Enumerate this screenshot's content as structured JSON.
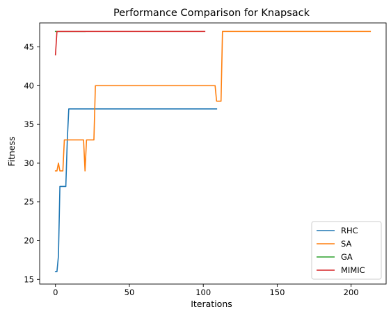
{
  "chart_data": {
    "type": "line",
    "title": "Performance Comparison for Knapsack",
    "xlabel": "Iterations",
    "ylabel": "Fitness",
    "xlim": [
      -10.7,
      223.7
    ],
    "ylim": [
      14.4,
      48.1
    ],
    "xticks": [
      0,
      50,
      100,
      150,
      200
    ],
    "yticks": [
      15,
      20,
      25,
      30,
      35,
      40,
      45
    ],
    "grid": false,
    "legend_position": "bottom-right",
    "series": [
      {
        "name": "RHC",
        "color": "#1f77b4",
        "points": [
          [
            0,
            16
          ],
          [
            1,
            16
          ],
          [
            2,
            18
          ],
          [
            3,
            27
          ],
          [
            4,
            27
          ],
          [
            5,
            27
          ],
          [
            6,
            27
          ],
          [
            7,
            27
          ],
          [
            8,
            33
          ],
          [
            9,
            37
          ],
          [
            20,
            37
          ],
          [
            40,
            37
          ],
          [
            60,
            37
          ],
          [
            80,
            37
          ],
          [
            100,
            37
          ],
          [
            109,
            37
          ]
        ]
      },
      {
        "name": "SA",
        "color": "#ff7f0e",
        "points": [
          [
            0,
            29
          ],
          [
            1,
            29
          ],
          [
            2,
            30
          ],
          [
            3,
            29
          ],
          [
            4,
            29
          ],
          [
            5,
            29
          ],
          [
            6,
            33
          ],
          [
            10,
            33
          ],
          [
            18,
            33
          ],
          [
            19,
            33
          ],
          [
            20,
            29
          ],
          [
            21,
            33
          ],
          [
            25,
            33
          ],
          [
            26,
            33
          ],
          [
            27,
            40
          ],
          [
            50,
            40
          ],
          [
            80,
            40
          ],
          [
            100,
            40
          ],
          [
            108,
            40
          ],
          [
            109,
            38
          ],
          [
            112,
            38
          ],
          [
            113,
            47
          ],
          [
            150,
            47
          ],
          [
            200,
            47
          ],
          [
            213,
            47
          ]
        ]
      },
      {
        "name": "GA",
        "color": "#2ca02c",
        "points": [
          [
            0,
            47
          ],
          [
            1,
            47
          ],
          [
            2,
            47
          ],
          [
            3,
            47
          ],
          [
            4,
            47
          ],
          [
            5,
            47
          ],
          [
            6,
            47
          ],
          [
            7,
            47
          ],
          [
            8,
            47
          ],
          [
            9,
            47
          ],
          [
            10,
            47
          ],
          [
            11,
            47
          ],
          [
            12,
            47
          ],
          [
            13,
            47
          ],
          [
            14,
            47
          ],
          [
            15,
            47
          ],
          [
            16,
            47
          ],
          [
            17,
            47
          ],
          [
            18,
            47
          ],
          [
            19,
            47
          ],
          [
            20,
            47
          ]
        ]
      },
      {
        "name": "MIMIC",
        "color": "#d62728",
        "points": [
          [
            0,
            44
          ],
          [
            1,
            47
          ],
          [
            20,
            47
          ],
          [
            40,
            47
          ],
          [
            60,
            47
          ],
          [
            80,
            47
          ],
          [
            101,
            47
          ]
        ]
      }
    ]
  }
}
